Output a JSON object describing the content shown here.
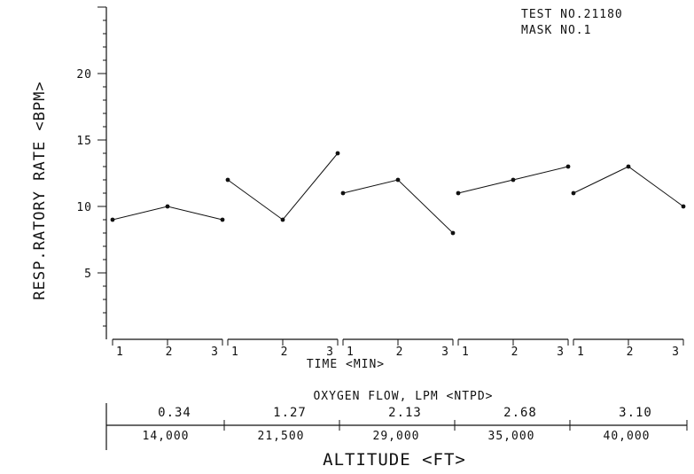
{
  "chart_data": {
    "type": "line",
    "annotation": [
      "TEST NO.21180",
      "MASK NO.1"
    ],
    "ylabel": "RESP.RATORY RATE <BPM>",
    "xlabel": "TIME <MIN>",
    "ylim": [
      0,
      25
    ],
    "yticks": [
      {
        "value": 5,
        "label": "5"
      },
      {
        "value": 10,
        "label": "10"
      },
      {
        "value": 15,
        "label": "15"
      },
      {
        "value": 20,
        "label": "20"
      }
    ],
    "oxygen_flow_title": "OXYGEN FLOW, LPM <NTPD>",
    "altitude_title": "ALTITUDE <FT>",
    "x_tick_labels": [
      "1",
      "2",
      "3"
    ],
    "series": [
      {
        "oxygen_flow": "0.34",
        "altitude": "14,000",
        "x": [
          1,
          2,
          3
        ],
        "values": [
          9,
          10,
          9
        ]
      },
      {
        "oxygen_flow": "1.27",
        "altitude": "21,500",
        "x": [
          1,
          2,
          3
        ],
        "values": [
          12,
          9,
          14
        ]
      },
      {
        "oxygen_flow": "2.13",
        "altitude": "29,000",
        "x": [
          1,
          2,
          3
        ],
        "values": [
          11,
          12,
          8
        ]
      },
      {
        "oxygen_flow": "2.68",
        "altitude": "35,000",
        "x": [
          1,
          2,
          3
        ],
        "values": [
          11,
          12,
          13
        ]
      },
      {
        "oxygen_flow": "3.10",
        "altitude": "40,000",
        "x": [
          1,
          2,
          3
        ],
        "values": [
          11,
          13,
          10
        ]
      }
    ],
    "grid": false
  }
}
